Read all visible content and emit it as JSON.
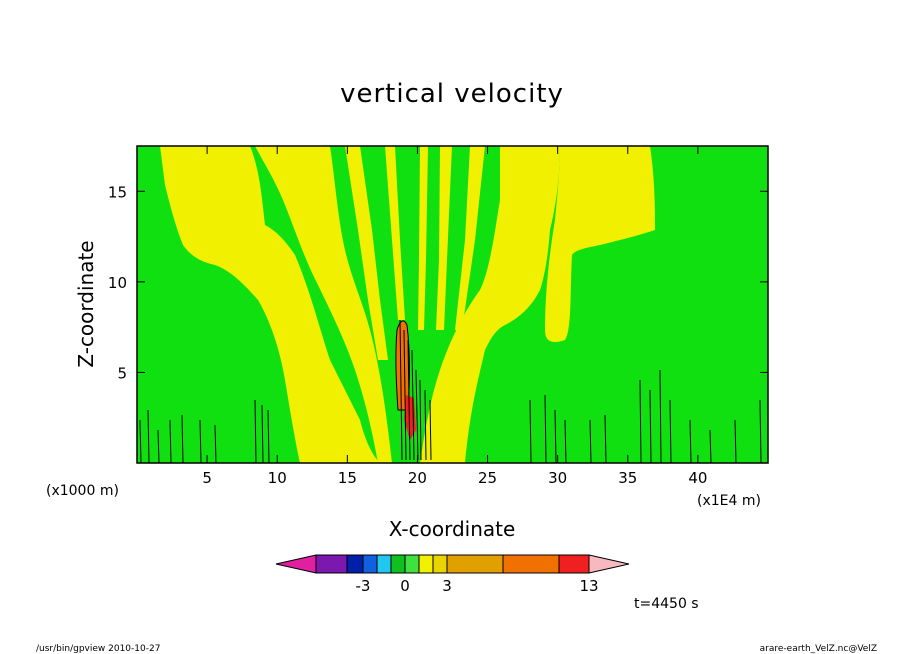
{
  "chart_data": {
    "type": "heatmap",
    "title": "vertical velocity",
    "xlabel": "X-coordinate",
    "ylabel": "Z-coordinate",
    "x_unit": "(x1000 m)",
    "x_unit_right": "(x1E4 m)",
    "xlim": [
      0,
      45
    ],
    "ylim": [
      0,
      17.5
    ],
    "x_ticks": [
      5,
      10,
      15,
      20,
      25,
      30,
      35,
      40
    ],
    "y_ticks": [
      5,
      10,
      15
    ],
    "colorbar": {
      "levels": [
        -6,
        -5,
        -4,
        -3,
        -2,
        -1,
        0,
        1,
        2,
        3,
        7,
        11,
        13
      ],
      "labels": [
        "-3",
        "0",
        "3",
        "13"
      ],
      "colors": [
        "#e020a0",
        "#7a18b0",
        "#0020a8",
        "#1060e0",
        "#20c8f0",
        "#10c020",
        "#40e040",
        "#f0f000",
        "#e8d400",
        "#e0a000",
        "#f07000",
        "#f02020",
        "#f08080",
        "#f8b8c0"
      ]
    },
    "regions": [
      {
        "name": "background",
        "value": 0.5,
        "color": "#10e010"
      },
      {
        "name": "yellow-left-band",
        "value": 1.5,
        "color": "#f0f000"
      },
      {
        "name": "yellow-right-band",
        "value": 1.5,
        "color": "#f0f000"
      },
      {
        "name": "orange-core",
        "value": 6,
        "color": "#f07000"
      }
    ]
  },
  "time_label": "t=4450 s",
  "footer": {
    "left": "/usr/bin/gpview   2010-10-27",
    "right": "arare-earth_VelZ.nc@VelZ"
  }
}
